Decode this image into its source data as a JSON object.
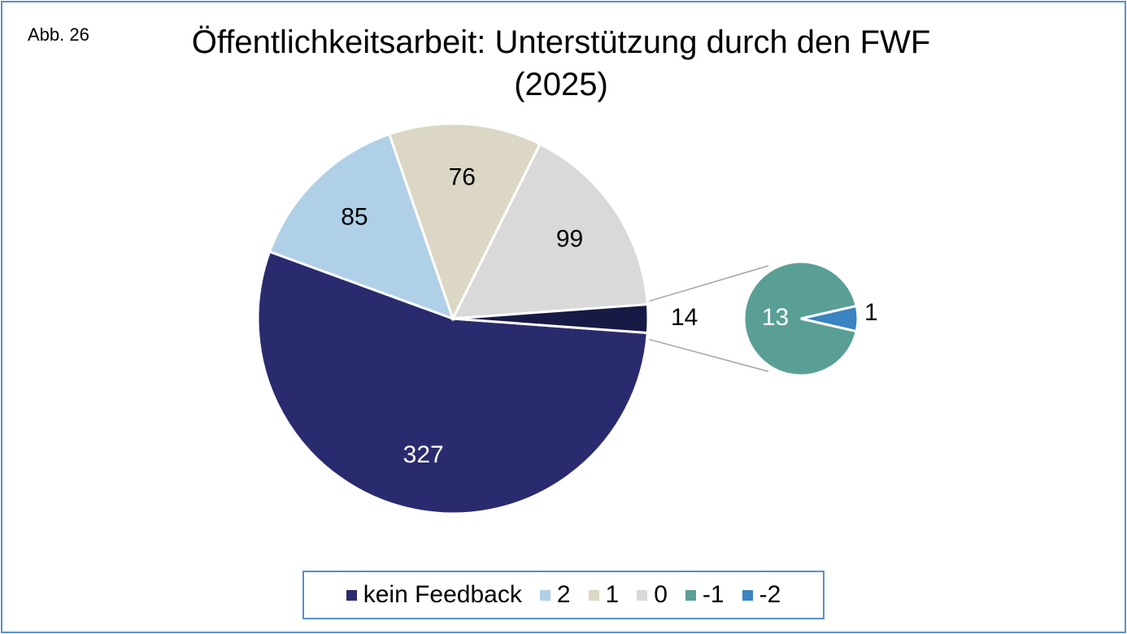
{
  "figure_label": "Abb. 26",
  "title_line1": "Öffentlichkeitsarbeit: Unterstützung durch den FWF",
  "title_line2": "(2025)",
  "chart_data": {
    "type": "pie",
    "subtype": "pie-of-pie",
    "title": "Öffentlichkeitsarbeit: Unterstützung durch den FWF (2025)",
    "main_slices": [
      {
        "name": "kein Feedback",
        "value": 327,
        "color": "#2a2b6e",
        "label_color": "#ffffff"
      },
      {
        "name": "2",
        "value": 85,
        "color": "#b0d0e8",
        "label_color": "#000000"
      },
      {
        "name": "1",
        "value": 76,
        "color": "#dcd7c5",
        "label_color": "#000000"
      },
      {
        "name": "0",
        "value": 99,
        "color": "#d9d9d9",
        "label_color": "#000000"
      },
      {
        "name": "-1 and -2 (combined)",
        "value": 14,
        "color": "#171a45",
        "label_color": "#000000"
      }
    ],
    "secondary_slices": [
      {
        "name": "-1",
        "value": 13,
        "color": "#5a9f96",
        "label_color": "#ffffff"
      },
      {
        "name": "-2",
        "value": 1,
        "color": "#3a84c2",
        "label_color": "#000000"
      }
    ],
    "legend_position": "bottom"
  },
  "legend": [
    {
      "label": "kein Feedback",
      "color": "#2a2b6e"
    },
    {
      "label": "2",
      "color": "#b0d0e8"
    },
    {
      "label": "1",
      "color": "#dcd7c5"
    },
    {
      "label": "0",
      "color": "#d9d9d9"
    },
    {
      "label": "-1",
      "color": "#5a9f96"
    },
    {
      "label": "-2",
      "color": "#3a84c2"
    }
  ]
}
